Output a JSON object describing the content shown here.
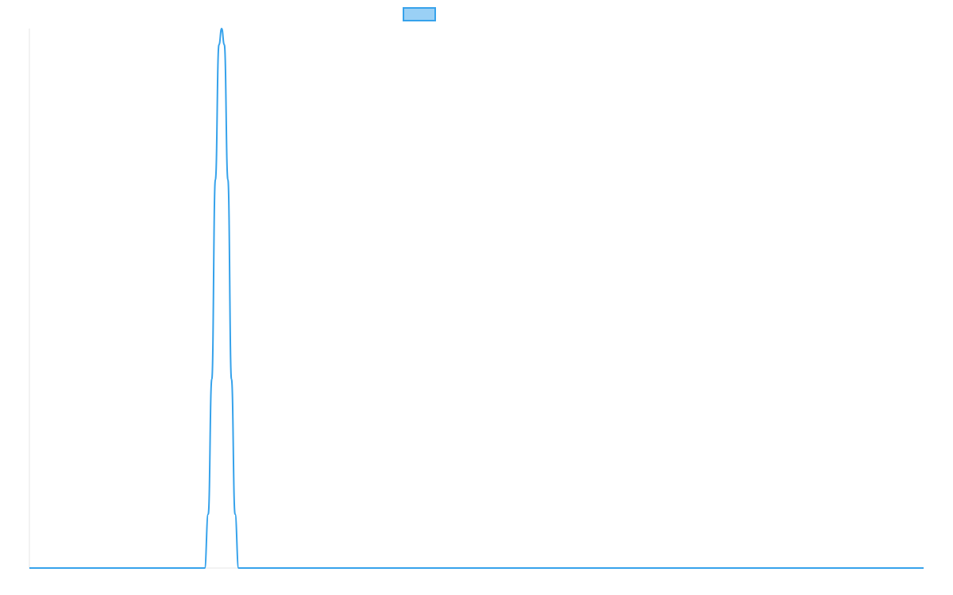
{
  "chart_data": {
    "type": "line",
    "title": "",
    "xlabel": "",
    "ylabel": "",
    "grid": false,
    "legend": "top-center",
    "xlim": [
      0,
      1000
    ],
    "ylim": [
      0,
      1
    ],
    "series": [
      {
        "color": "#36a2eb",
        "fill": "#9ad0f5",
        "points": [
          [
            0,
            0
          ],
          [
            196,
            0
          ],
          [
            200,
            0.1
          ],
          [
            204,
            0.35
          ],
          [
            208,
            0.72
          ],
          [
            212,
            0.97
          ],
          [
            215,
            1.0
          ],
          [
            218,
            0.97
          ],
          [
            222,
            0.72
          ],
          [
            226,
            0.35
          ],
          [
            230,
            0.1
          ],
          [
            234,
            0
          ],
          [
            1000,
            0
          ]
        ]
      }
    ]
  }
}
